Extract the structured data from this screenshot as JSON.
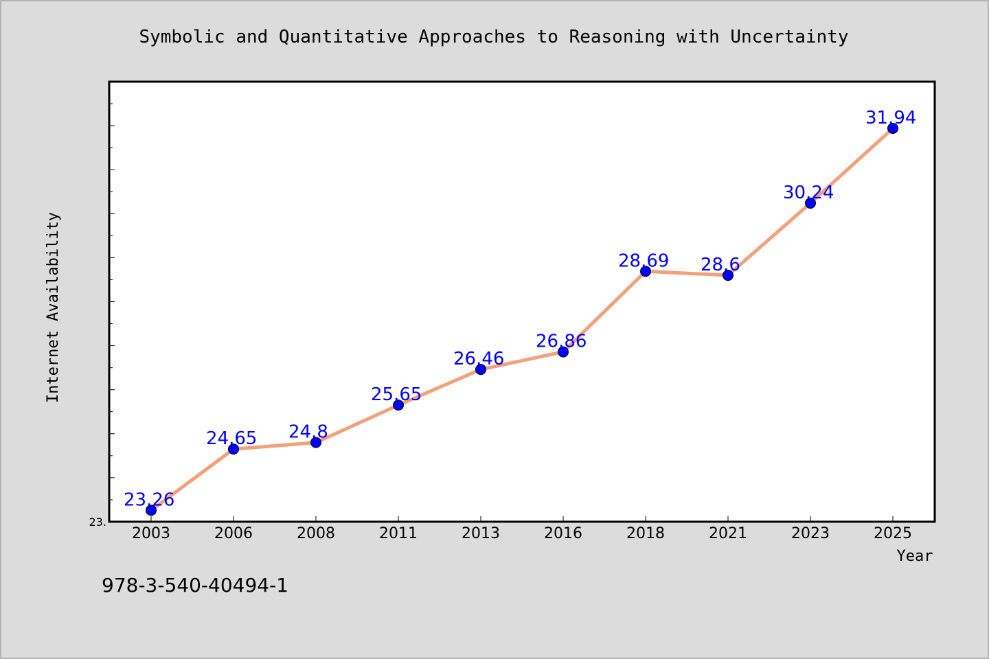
{
  "chart_data": {
    "type": "line",
    "title": "Symbolic and Quantitative Approaches to Reasoning with Uncertainty",
    "xlabel": "Year",
    "ylabel": "Internet Availability",
    "categories": [
      "2003",
      "2006",
      "2008",
      "2011",
      "2013",
      "2016",
      "2018",
      "2021",
      "2023",
      "2025"
    ],
    "values": [
      23.26,
      24.65,
      24.8,
      25.65,
      26.46,
      26.86,
      28.69,
      28.6,
      30.24,
      31.94
    ],
    "data_labels": [
      "23.26",
      "24.65",
      "24.8",
      "25.65",
      "26.46",
      "26.86",
      "28.69",
      "28.6",
      "30.24",
      "31.94"
    ],
    "ylim": [
      23.0,
      33.0
    ],
    "ytick_labels": [
      "23."
    ],
    "grid": false,
    "legend": "none",
    "line_color": "#f4a07a",
    "marker_color": "#0000ff",
    "label_color": "#0000ff"
  },
  "footer": {
    "isbn": "978-3-540-40494-1"
  }
}
